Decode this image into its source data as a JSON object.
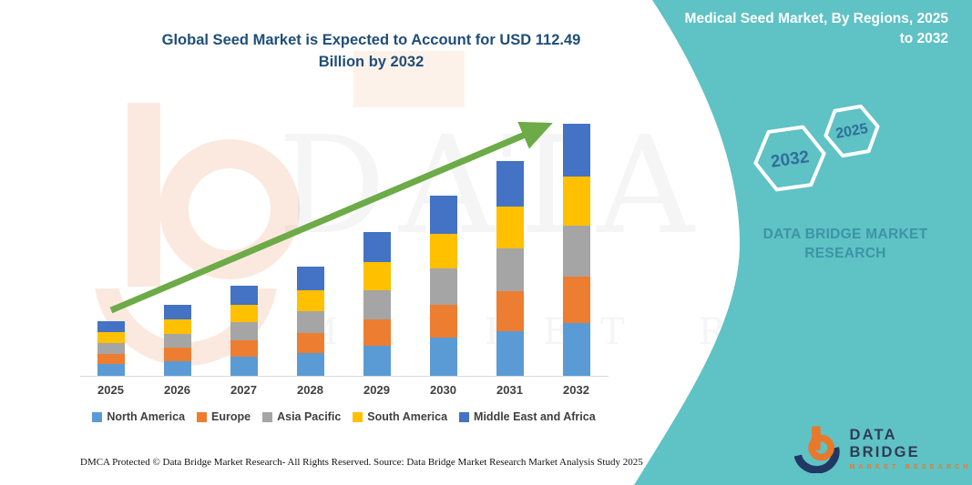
{
  "titles": {
    "left_line1": "Global Seed Market is Expected to Account for USD 112.49",
    "left_line2": "Billion by 2032",
    "right_line1": "Medical Seed Market, By Regions,",
    "right_line2": "2025 to 2032"
  },
  "side_panel": {
    "hexagon_back_label": "2032",
    "hexagon_front_label": "2025",
    "brand_text": "DATA BRIDGE MARKET RESEARCH"
  },
  "watermark": {
    "line1": "DATA BRIDGE",
    "line2": "MARKET RESEARCH"
  },
  "chart_data": {
    "type": "bar",
    "stacked": true,
    "title": "Global Seed Market is Expected to Account for USD 112.49 Billion by 2032",
    "unit": "USD Billion",
    "categories": [
      "2025",
      "2026",
      "2027",
      "2028",
      "2029",
      "2030",
      "2031",
      "2032"
    ],
    "series": [
      {
        "name": "North America",
        "color": "#5B9BD5",
        "values": [
          5.1,
          6.7,
          8.4,
          10.2,
          13.5,
          16.9,
          20.1,
          23.6
        ]
      },
      {
        "name": "Europe",
        "color": "#ED7D31",
        "values": [
          4.5,
          5.9,
          7.4,
          9.0,
          11.9,
          14.9,
          17.7,
          20.8
        ]
      },
      {
        "name": "Asia Pacific",
        "color": "#A5A5A5",
        "values": [
          4.9,
          6.3,
          8.0,
          9.7,
          12.8,
          16.1,
          19.2,
          22.5
        ]
      },
      {
        "name": "South America",
        "color": "#FFC000",
        "values": [
          4.8,
          6.2,
          7.8,
          9.5,
          12.5,
          15.7,
          18.7,
          21.9
        ]
      },
      {
        "name": "Middle East and Africa",
        "color": "#4472C4",
        "values": [
          5.1,
          6.6,
          8.6,
          10.3,
          13.5,
          16.8,
          20.1,
          23.7
        ]
      }
    ],
    "totals": [
      24.4,
      31.7,
      40.2,
      48.7,
      64.2,
      80.4,
      95.8,
      112.49
    ],
    "highlight_value_2032": 112.49,
    "ylim": [
      0,
      115
    ],
    "grid": false,
    "legend_position": "bottom",
    "trend_arrow": true
  },
  "footer": {
    "dmca": "DMCA Protected © Data Bridge Market Research-  All Rights Reserved.",
    "source": "Source: Data Bridge Market Research  Market Analysis Study 2025"
  },
  "logo": {
    "name": "DATA BRIDGE",
    "tagline": "MARKET RESEARCH"
  },
  "colors": {
    "teal_panel": "#5FC2C5",
    "arrow_green": "#6CAB47",
    "title_blue": "#1F4E79",
    "axis_gray": "#D9D9D9",
    "hexagon_year_blue": "#2F6F9A",
    "panel_brand_teal": "#3D94A6",
    "logo_navy": "#203864",
    "logo_orange": "#E8782A"
  }
}
